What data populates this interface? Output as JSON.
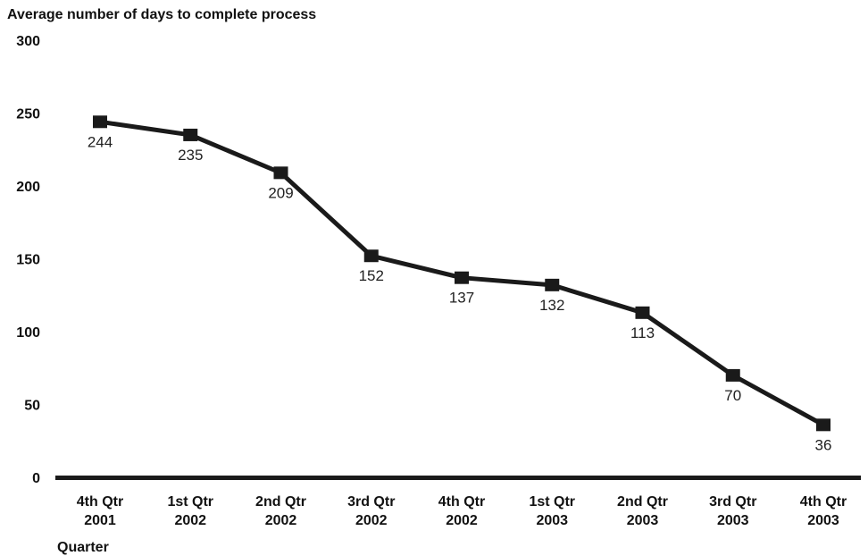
{
  "chart_data": {
    "type": "line",
    "ylabel": "Average number of days to complete process",
    "xlabel": "Quarter",
    "categories": [
      [
        "4th Qtr",
        "2001"
      ],
      [
        "1st Qtr",
        "2002"
      ],
      [
        "2nd Qtr",
        "2002"
      ],
      [
        "3rd Qtr",
        "2002"
      ],
      [
        "4th Qtr",
        "2002"
      ],
      [
        "1st Qtr",
        "2003"
      ],
      [
        "2nd Qtr",
        "2003"
      ],
      [
        "3rd Qtr",
        "2003"
      ],
      [
        "4th Qtr",
        "2003"
      ]
    ],
    "series": [
      {
        "values": [
          244,
          235,
          209,
          152,
          137,
          132,
          113,
          70,
          36
        ]
      }
    ],
    "data_labels": [
      "244",
      "235",
      "209",
      "152",
      "137",
      "132",
      "113",
      "70",
      "36"
    ],
    "ylim": [
      0,
      300
    ],
    "yticks": [
      0,
      50,
      100,
      150,
      200,
      250,
      300
    ],
    "grid": false,
    "color": "#1a1a1a"
  }
}
